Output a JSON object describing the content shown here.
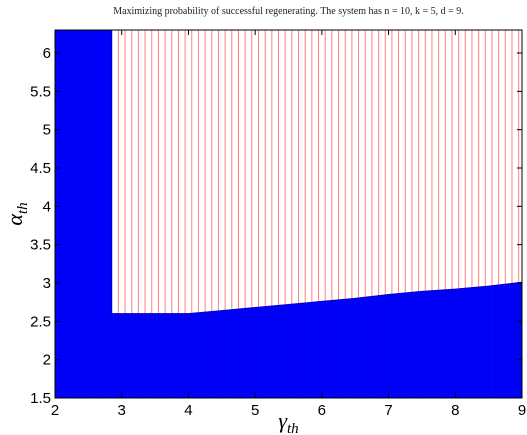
{
  "chart_data": {
    "type": "area",
    "title": "Maximizing probability of successful regenerating. The system has n = 10, k = 5, d = 9.",
    "xlabel": "γth",
    "ylabel": "αth",
    "xlim": [
      2,
      9
    ],
    "ylim": [
      1.5,
      6.3
    ],
    "xticks": [
      "2",
      "3",
      "4",
      "5",
      "6",
      "7",
      "8",
      "9"
    ],
    "yticks": [
      "1.5",
      "2",
      "2.5",
      "3",
      "3.5",
      "4",
      "4.5",
      "5",
      "5.5",
      "6"
    ],
    "grid": false,
    "series": [
      {
        "color": "#0000ff",
        "boundary": {
          "x": [
            2,
            2.85,
            2.85,
            3.0,
            3.5,
            4.0,
            4.5,
            5.0,
            5.5,
            6.0,
            6.5,
            7.0,
            7.5,
            8.0,
            8.5,
            9.0
          ],
          "y": [
            6.3,
            6.3,
            2.6,
            2.6,
            2.6,
            2.6,
            2.64,
            2.68,
            2.72,
            2.76,
            2.8,
            2.85,
            2.89,
            2.92,
            2.96,
            3.01
          ]
        }
      },
      {
        "color": "#ff8080",
        "pattern": "vertical-lines",
        "x_start": 2.85,
        "y_top": 6.3,
        "spacing": 0.1
      }
    ]
  }
}
